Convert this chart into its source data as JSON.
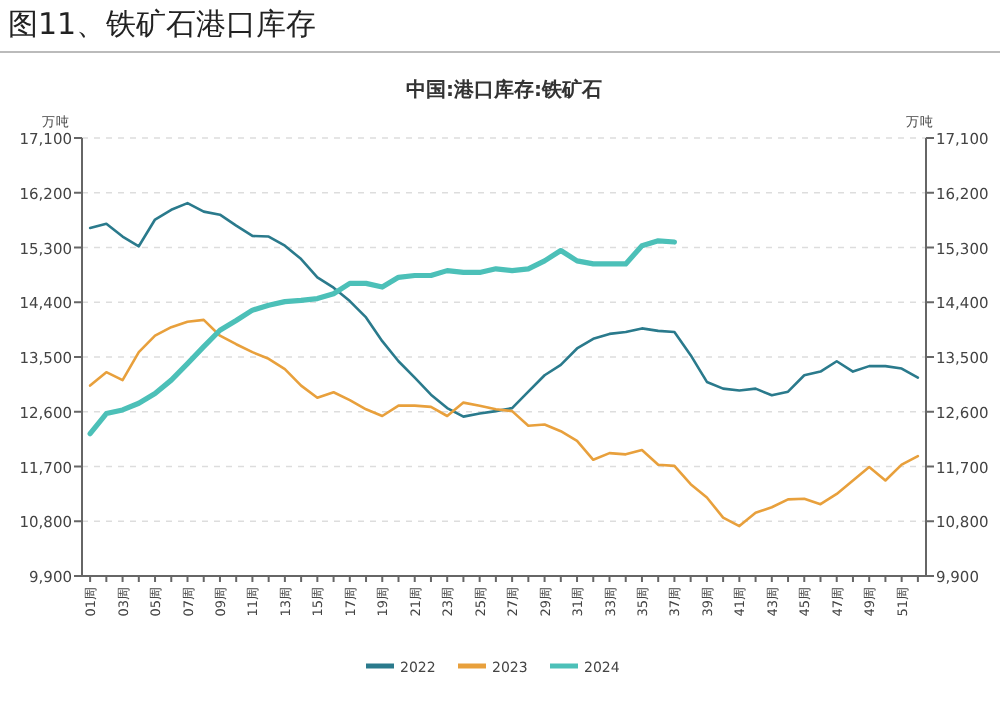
{
  "chart_data": {
    "type": "line",
    "title": "图11、铁矿石港口库存",
    "subtitle": "中国:港口库存:铁矿石",
    "ylabel": "万吨",
    "y2label": "万吨",
    "categories": [
      "01周",
      null,
      "03周",
      null,
      "05周",
      null,
      "07周",
      null,
      "09周",
      null,
      "11周",
      null,
      "13周",
      null,
      "15周",
      null,
      "17周",
      null,
      "19周",
      null,
      "21周",
      null,
      "23周",
      null,
      "25周",
      null,
      "27周",
      null,
      "29周",
      null,
      "31周",
      null,
      "33周",
      null,
      "35周",
      null,
      "37周",
      null,
      "39周",
      null,
      "41周",
      null,
      "43周",
      null,
      "45周",
      null,
      "47周",
      null,
      "49周",
      null,
      "51周",
      null
    ],
    "series": [
      {
        "name": "2022",
        "color": "#2a7a8c",
        "values": [
          15620,
          15690,
          15480,
          15320,
          15760,
          15920,
          16030,
          15890,
          15840,
          15660,
          15490,
          15480,
          15330,
          15110,
          14810,
          14640,
          14420,
          14150,
          13760,
          13430,
          13160,
          12880,
          12660,
          12520,
          12570,
          12610,
          12660,
          12930,
          13200,
          13370,
          13640,
          13800,
          13880,
          13910,
          13970,
          13930,
          13910,
          13530,
          13090,
          12980,
          12950,
          12980,
          12870,
          12930,
          13200,
          13260,
          13430,
          13260,
          13350,
          13350,
          13310,
          13160
        ]
      },
      {
        "name": "2023",
        "color": "#e8a03c",
        "values": [
          13030,
          13250,
          13120,
          13580,
          13850,
          13990,
          14080,
          14110,
          13850,
          13710,
          13580,
          13470,
          13300,
          13030,
          12830,
          12920,
          12790,
          12640,
          12530,
          12700,
          12700,
          12680,
          12530,
          12750,
          12700,
          12640,
          12610,
          12370,
          12390,
          12280,
          12120,
          11810,
          11920,
          11900,
          11970,
          11730,
          11710,
          11410,
          11190,
          10860,
          10720,
          10940,
          11030,
          11160,
          11170,
          11080,
          11250,
          11470,
          11690,
          11470,
          11730,
          11870
        ]
      },
      {
        "name": "2024",
        "color": "#4cc0b8",
        "values": [
          12240,
          12570,
          12630,
          12740,
          12900,
          13120,
          13390,
          13670,
          13940,
          14100,
          14270,
          14350,
          14410,
          14430,
          14460,
          14540,
          14710,
          14710,
          14650,
          14810,
          14840,
          14840,
          14920,
          14890,
          14890,
          14950,
          14920,
          14950,
          15080,
          15250,
          15080,
          15030,
          15030,
          15030,
          15330,
          15410,
          15390,
          null,
          null,
          null,
          null,
          null,
          null,
          null,
          null,
          null,
          null,
          null,
          null,
          null,
          null,
          null
        ]
      }
    ],
    "ylim": [
      9900,
      17100
    ],
    "yticks": [
      {
        "value": 9900,
        "label": "9,900"
      },
      {
        "value": 10800,
        "label": "10,800"
      },
      {
        "value": 11700,
        "label": "11,700"
      },
      {
        "value": 12600,
        "label": "12,600"
      },
      {
        "value": 13500,
        "label": "13,500"
      },
      {
        "value": 14400,
        "label": "14,400"
      },
      {
        "value": 15300,
        "label": "15,300"
      },
      {
        "value": 16200,
        "label": "16,200"
      },
      {
        "value": 17100,
        "label": "17,100"
      }
    ],
    "y2lim": [
      9900,
      17100
    ],
    "y2ticks": [
      {
        "value": 9900,
        "label": "9,900"
      },
      {
        "value": 10800,
        "label": "10,800"
      },
      {
        "value": 11700,
        "label": "11,700"
      },
      {
        "value": 12600,
        "label": "12,600"
      },
      {
        "value": 13500,
        "label": "13,500"
      },
      {
        "value": 14400,
        "label": "14,400"
      },
      {
        "value": 15300,
        "label": "15,300"
      },
      {
        "value": 16200,
        "label": "16,200"
      },
      {
        "value": 17100,
        "label": "17,100"
      }
    ],
    "grid": "y",
    "legend": "bottom"
  }
}
